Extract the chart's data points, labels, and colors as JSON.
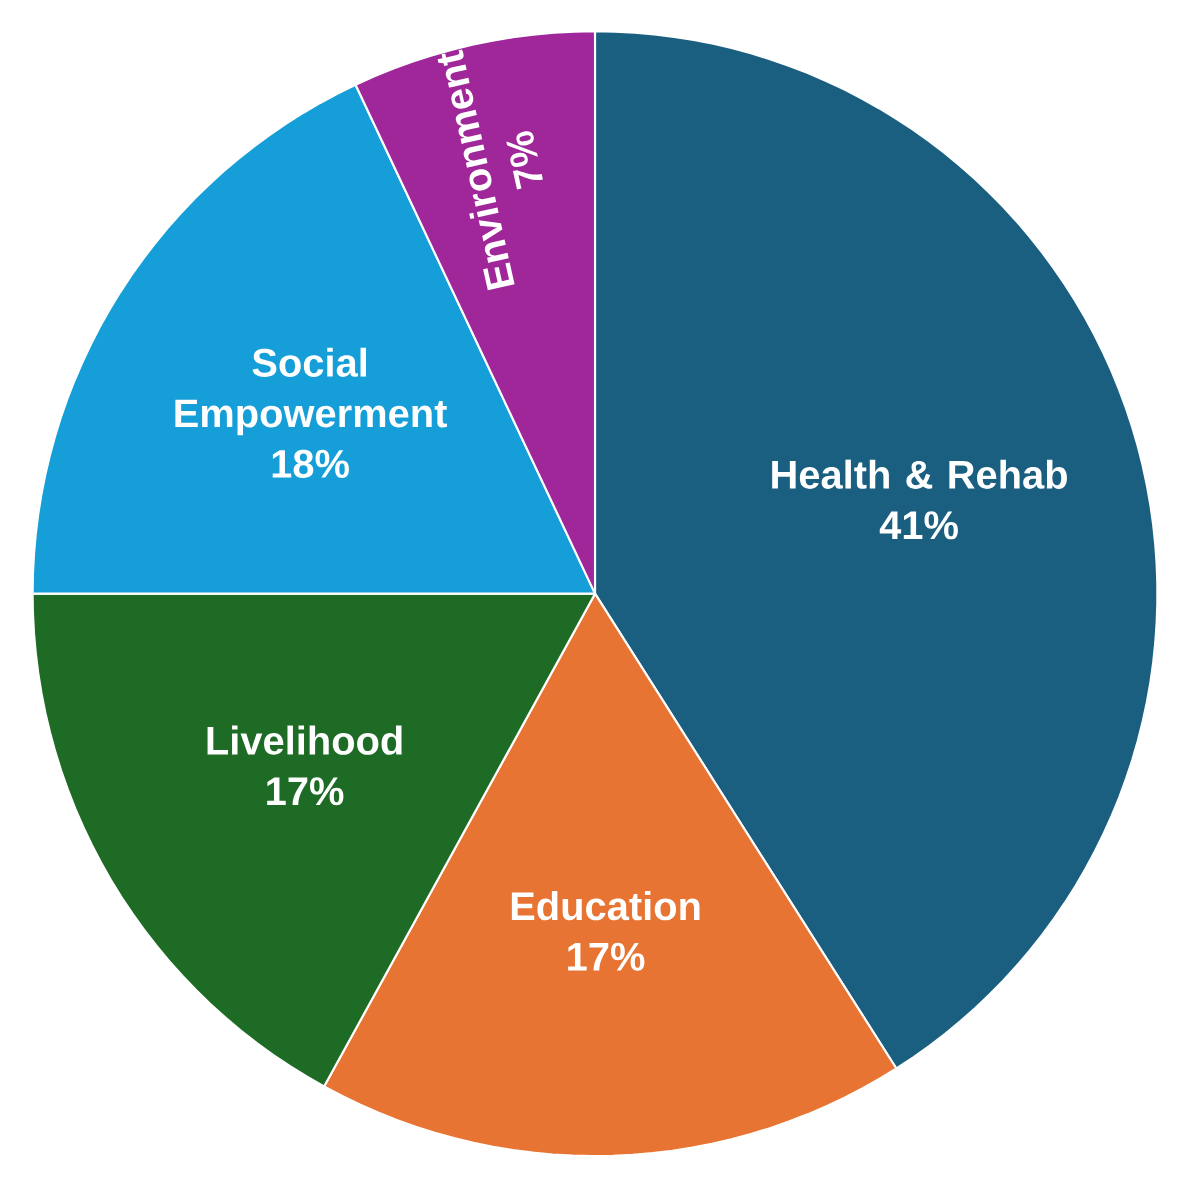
{
  "chart_data": {
    "type": "pie",
    "categories": [
      "Health & Rehab",
      "Education",
      "Livelihood",
      "Social Empowerment",
      "Environment"
    ],
    "values": [
      41,
      17,
      17,
      18,
      7
    ],
    "value_labels": [
      "41%",
      "17%",
      "17%",
      "18%",
      "7%"
    ],
    "colors": [
      "#1a5f80",
      "#e87433",
      "#1e6b26",
      "#159ed7",
      "#a0279a"
    ]
  }
}
